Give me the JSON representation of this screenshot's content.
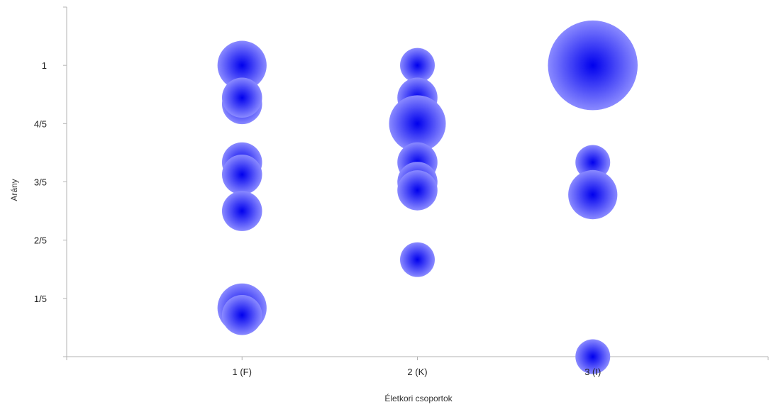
{
  "chart_data": {
    "type": "scatter",
    "subtype": "bubble",
    "title": "",
    "xlabel": "Életkori csoportok",
    "ylabel": "Arány",
    "categories": [
      "1 (F)",
      "2 (K)",
      "3 (I)"
    ],
    "xlim": [
      0,
      4
    ],
    "ylim": [
      0,
      1.2
    ],
    "y_ticks": [
      {
        "value": 1.0,
        "label": "1"
      },
      {
        "value": 0.8,
        "label": "4/5"
      },
      {
        "value": 0.6,
        "label": "3/5"
      },
      {
        "value": 0.4,
        "label": "2/5"
      },
      {
        "value": 0.2,
        "label": "1/5"
      }
    ],
    "grid": false,
    "legend": "none",
    "colors": {
      "bubble_center": "#0000ee",
      "bubble_edge": "#8a8aff",
      "axis": "#b3b3b3"
    },
    "points": [
      {
        "x": 1,
        "y": 1.0,
        "size": 3
      },
      {
        "x": 1,
        "y": 0.867,
        "size": 2
      },
      {
        "x": 1,
        "y": 0.889,
        "size": 2
      },
      {
        "x": 1,
        "y": 0.667,
        "size": 2
      },
      {
        "x": 1,
        "y": 0.625,
        "size": 2
      },
      {
        "x": 1,
        "y": 0.5,
        "size": 2
      },
      {
        "x": 1,
        "y": 0.167,
        "size": 3
      },
      {
        "x": 1,
        "y": 0.143,
        "size": 2
      },
      {
        "x": 2,
        "y": 1.0,
        "size": 1.5
      },
      {
        "x": 2,
        "y": 0.889,
        "size": 2
      },
      {
        "x": 2,
        "y": 0.8,
        "size": 4
      },
      {
        "x": 2,
        "y": 0.667,
        "size": 2
      },
      {
        "x": 2,
        "y": 0.6,
        "size": 2
      },
      {
        "x": 2,
        "y": 0.571,
        "size": 2
      },
      {
        "x": 2,
        "y": 0.333,
        "size": 1.5
      },
      {
        "x": 3,
        "y": 1.0,
        "size": 10
      },
      {
        "x": 3,
        "y": 0.667,
        "size": 1.5
      },
      {
        "x": 3,
        "y": 0.556,
        "size": 3
      },
      {
        "x": 3,
        "y": 0.0,
        "size": 1.5
      }
    ]
  }
}
